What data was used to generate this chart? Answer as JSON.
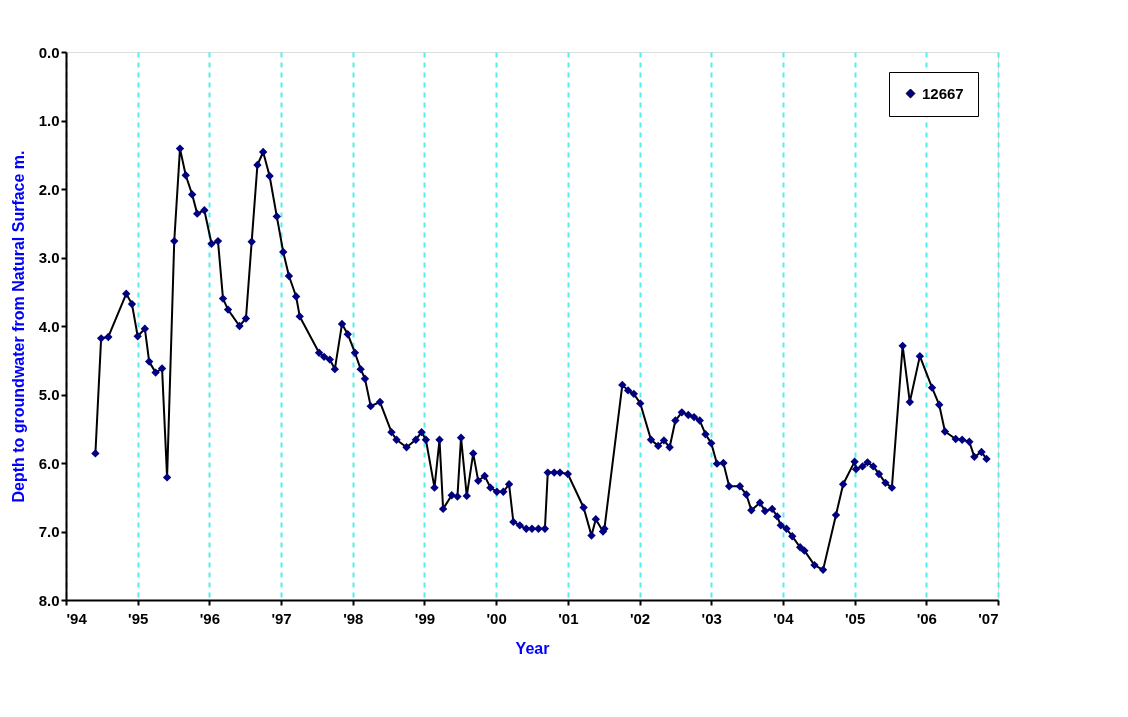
{
  "chart_data": {
    "type": "line",
    "xlabel": "Year",
    "ylabel": "Depth to groundwater from Natural Surface m.",
    "x": [
      1994.41,
      1994.49,
      1994.59,
      1994.84,
      1994.92,
      1995.0,
      1995.1,
      1995.16,
      1995.25,
      1995.34,
      1995.41,
      1995.51,
      1995.59,
      1995.67,
      1995.76,
      1995.83,
      1995.93,
      1996.03,
      1996.12,
      1996.19,
      1996.26,
      1996.42,
      1996.51,
      1996.59,
      1996.67,
      1996.75,
      1996.84,
      1996.94,
      1997.03,
      1997.11,
      1997.21,
      1997.26,
      1997.53,
      1997.6,
      1997.68,
      1997.75,
      1997.85,
      1997.93,
      1998.03,
      1998.11,
      1998.17,
      1998.25,
      1998.38,
      1998.54,
      1998.61,
      1998.75,
      1998.88,
      1998.96,
      1999.02,
      1999.14,
      1999.21,
      1999.26,
      1999.38,
      1999.46,
      1999.51,
      1999.59,
      1999.68,
      1999.75,
      1999.84,
      1999.92,
      2000.01,
      2000.1,
      2000.18,
      2000.24,
      2000.33,
      2000.42,
      2000.5,
      2000.59,
      2000.68,
      2000.72,
      2000.81,
      2000.89,
      2001.0,
      2001.22,
      2001.33,
      2001.39,
      2001.49,
      2001.51,
      2001.76,
      2001.84,
      2001.92,
      2002.01,
      2002.16,
      2002.26,
      2002.34,
      2002.42,
      2002.5,
      2002.59,
      2002.68,
      2002.76,
      2002.84,
      2002.92,
      2003.0,
      2003.08,
      2003.17,
      2003.25,
      2003.4,
      2003.49,
      2003.56,
      2003.68,
      2003.75,
      2003.85,
      2003.92,
      2003.97,
      2004.05,
      2004.13,
      2004.24,
      2004.3,
      2004.44,
      2004.56,
      2004.74,
      2004.84,
      2005.0,
      2005.02,
      2005.11,
      2005.18,
      2005.26,
      2005.34,
      2005.43,
      2005.52,
      2005.67,
      2005.77,
      2005.91,
      2006.08,
      2006.18,
      2006.26,
      2006.41,
      2006.5,
      2006.6,
      2006.67,
      2006.77,
      2006.84
    ],
    "series": [
      {
        "name": "12667",
        "color": "#000080",
        "values": [
          5.86,
          4.18,
          4.16,
          3.53,
          3.68,
          4.15,
          4.04,
          4.52,
          4.68,
          4.62,
          6.21,
          2.76,
          1.41,
          1.8,
          2.08,
          2.36,
          2.31,
          2.8,
          2.76,
          3.6,
          3.76,
          4.0,
          3.89,
          2.77,
          1.65,
          1.46,
          1.81,
          2.4,
          2.92,
          3.27,
          3.57,
          3.86,
          4.39,
          4.45,
          4.49,
          4.63,
          3.97,
          4.12,
          4.39,
          4.63,
          4.77,
          5.17,
          5.11,
          5.55,
          5.66,
          5.77,
          5.66,
          5.55,
          5.66,
          6.36,
          5.66,
          6.67,
          6.47,
          6.49,
          5.63,
          6.48,
          5.86,
          6.26,
          6.19,
          6.36,
          6.42,
          6.42,
          6.31,
          6.86,
          6.91,
          6.96,
          6.96,
          6.96,
          6.96,
          6.14,
          6.14,
          6.14,
          6.16,
          6.65,
          7.06,
          6.82,
          7.0,
          6.96,
          4.86,
          4.94,
          4.99,
          5.13,
          5.66,
          5.75,
          5.67,
          5.77,
          5.38,
          5.26,
          5.3,
          5.33,
          5.38,
          5.58,
          5.71,
          6.01,
          6.0,
          6.34,
          6.34,
          6.46,
          6.69,
          6.58,
          6.7,
          6.67,
          6.78,
          6.91,
          6.96,
          7.07,
          7.23,
          7.28,
          7.49,
          7.56,
          6.76,
          6.31,
          5.98,
          6.09,
          6.05,
          5.99,
          6.05,
          6.16,
          6.29,
          6.36,
          4.29,
          5.11,
          4.44,
          4.9,
          5.15,
          5.54,
          5.65,
          5.66,
          5.69,
          5.91,
          5.84,
          5.94
        ]
      }
    ],
    "xlim": [
      1994,
      2007
    ],
    "xticks": [
      {
        "value": 1994,
        "label": "'94"
      },
      {
        "value": 1995,
        "label": "'95"
      },
      {
        "value": 1996,
        "label": "'96"
      },
      {
        "value": 1997,
        "label": "'97"
      },
      {
        "value": 1998,
        "label": "'98"
      },
      {
        "value": 1999,
        "label": "'99"
      },
      {
        "value": 2000,
        "label": "'00"
      },
      {
        "value": 2001,
        "label": "'01"
      },
      {
        "value": 2002,
        "label": "'02"
      },
      {
        "value": 2003,
        "label": "'03"
      },
      {
        "value": 2004,
        "label": "'04"
      },
      {
        "value": 2005,
        "label": "'05"
      },
      {
        "value": 2006,
        "label": "'06"
      },
      {
        "value": 2007,
        "label": "'07"
      }
    ],
    "ylim": [
      8,
      0
    ],
    "yticks": [
      {
        "value": 0,
        "label": "0.0"
      },
      {
        "value": 1,
        "label": "1.0"
      },
      {
        "value": 2,
        "label": "2.0"
      },
      {
        "value": 3,
        "label": "3.0"
      },
      {
        "value": 4,
        "label": "4.0"
      },
      {
        "value": 5,
        "label": "5.0"
      },
      {
        "value": 6,
        "label": "6.0"
      },
      {
        "value": 7,
        "label": "7.0"
      },
      {
        "value": 8,
        "label": "8.0"
      }
    ],
    "grid": "x",
    "legend": "top right",
    "marker": "diamond",
    "line_style": "solid"
  }
}
